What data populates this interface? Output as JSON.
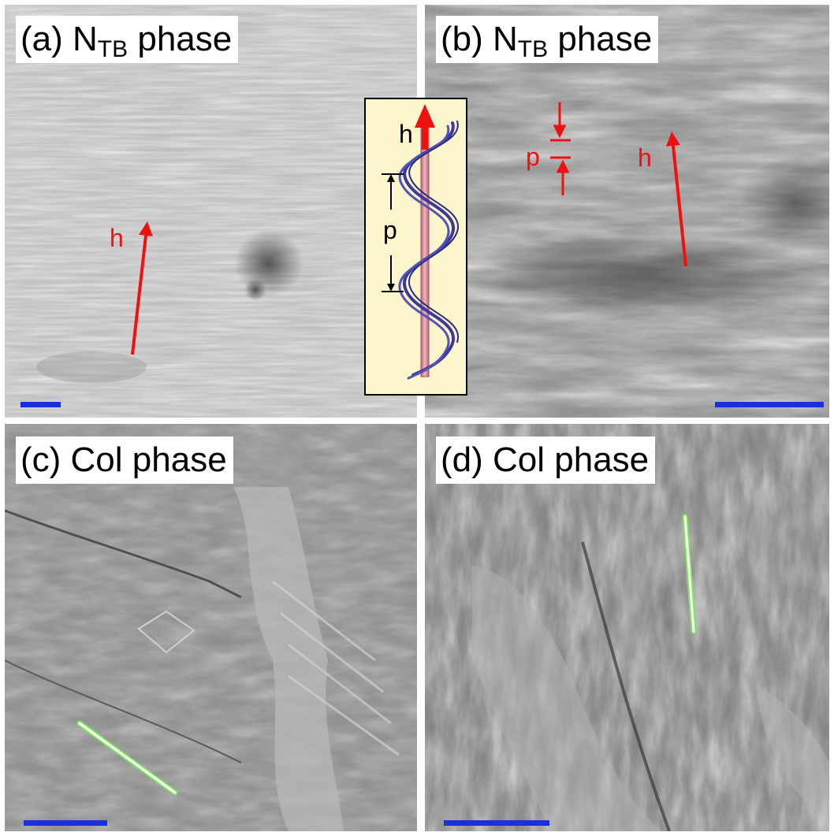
{
  "panels": {
    "a": {
      "label": "(a) N",
      "sub": "TB",
      "suffix": " phase",
      "h_label": "h"
    },
    "b": {
      "label": "(b) N",
      "sub": "TB",
      "suffix": " phase",
      "h_label": "h",
      "p_label": "p"
    },
    "c": {
      "label": "(c) Col phase"
    },
    "d": {
      "label": "(d) Col phase"
    }
  },
  "inset": {
    "h_label": "h",
    "p_label": "p"
  },
  "colors": {
    "arrow": "#ee1111",
    "scale_bar": "#1a2ee6",
    "axis_marker": "#7ee85c",
    "helix": "#3a3a9a",
    "rod": "#d68a94",
    "inset_bg": "#fdf6cc"
  }
}
